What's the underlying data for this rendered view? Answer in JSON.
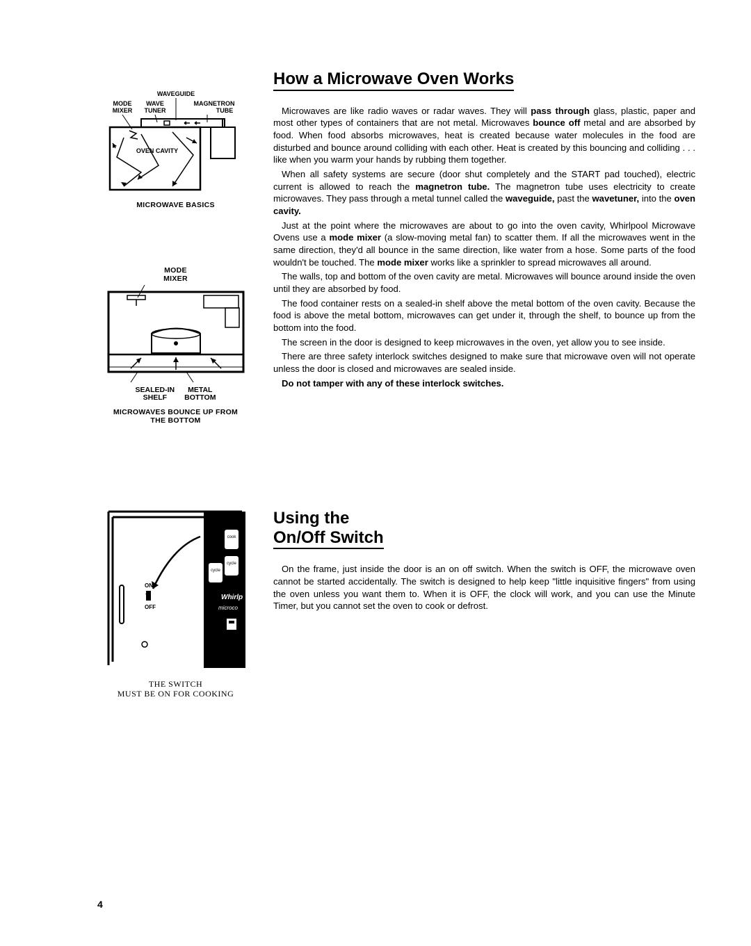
{
  "page_number": "4",
  "section1": {
    "title": "How a Microwave Oven Works",
    "paragraphs": [
      {
        "pre": "Microwaves are like radio waves or radar waves. They will ",
        "b1": "pass through",
        "mid1": " glass, plastic, paper and most other types of containers that are not metal. Microwaves ",
        "b2": "bounce off",
        "post": " metal and are absorbed by food. When food absorbs microwaves, heat is created because water molecules in the food are disturbed and bounce around colliding with each other. Heat is created by this bouncing and colliding . . . like when you warm your hands by rubbing them together."
      },
      {
        "pre": "When all safety systems are secure (door shut completely and the START pad touched), electric current is allowed to reach the ",
        "b1": "magnetron tube.",
        "mid1": " The magnetron tube uses electricity to create microwaves. They pass through a metal tunnel called the ",
        "b2": "waveguide,",
        "mid2": " past the ",
        "b3": "wavetuner,",
        "mid3": " into the ",
        "b4": "oven cavity.",
        "post": ""
      },
      {
        "pre": "Just at the point where the microwaves are about to go into the oven cavity, Whirlpool Microwave Ovens use a ",
        "b1": "mode mixer",
        "mid1": " (a slow-moving metal fan) to scatter them. If all the microwaves went in the same direction, they'd all bounce in the same direction, like water from a hose. Some parts of the food wouldn't be touched. The ",
        "b2": "mode mixer",
        "post": " works like a sprinkler to spread microwaves all around."
      },
      {
        "plain": "The walls, top and bottom of the oven cavity are metal. Microwaves will bounce around inside the oven until they are absorbed by food."
      },
      {
        "plain": "The food container rests on a sealed-in shelf above the metal bottom of the oven cavity. Because the food is above the metal bottom, microwaves can get under it, through the shelf, to bounce up from the bottom into the food."
      },
      {
        "plain": "The screen in the door is designed to keep microwaves in the oven, yet allow you to see inside."
      },
      {
        "plain": "There are three safety interlock switches designed to make sure that microwave oven will not operate unless the door is closed and microwaves are sealed inside."
      },
      {
        "bold_only": "Do not tamper with any of these interlock switches."
      }
    ]
  },
  "section2": {
    "title_line1": "Using the",
    "title_line2": "On/Off Switch",
    "paragraph": "On the frame, just inside the door is an on off switch. When the switch is OFF, the microwave oven cannot be started accidentally. The switch is designed to help keep \"little inquisitive fingers\" from using the oven unless you want them to. When it is OFF, the clock will work, and you can use the Minute Timer, but you cannot set the oven to cook or defrost."
  },
  "diagrams": {
    "d1": {
      "labels": {
        "waveguide": "WAVEGUIDE",
        "mode_mixer_l1": "MODE",
        "mode_mixer_l2": "MIXER",
        "wave_tuner_l1": "WAVE",
        "wave_tuner_l2": "TUNER",
        "magnetron_l1": "MAGNETRON",
        "magnetron_l2": "TUBE",
        "oven_cavity": "OVEN CAVITY"
      },
      "caption": "MICROWAVE BASICS"
    },
    "d2": {
      "labels": {
        "mode_mixer_l1": "MODE",
        "mode_mixer_l2": "MIXER",
        "sealed_in_l1": "SEALED-IN",
        "sealed_in_l2": "SHELF",
        "metal_bottom_l1": "METAL",
        "metal_bottom_l2": "BOTTOM"
      },
      "caption_l1": "MICROWAVES BOUNCE UP FROM",
      "caption_l2": "THE BOTTOM"
    },
    "d3": {
      "labels": {
        "on": "ON",
        "off": "OFF",
        "brand1": "Whirlp",
        "brand2": "microco",
        "cook": "cook",
        "cycle1": "cycle",
        "cycle2": "cycle"
      },
      "caption_l1": "THE SWITCH",
      "caption_l2": "MUST BE ON FOR COOKING"
    }
  },
  "style": {
    "page_bg": "#ffffff",
    "text_color": "#000000",
    "rule_color": "#000000",
    "title_fontsize_pt": 18,
    "body_fontsize_pt": 10,
    "caption_fontsize_pt": 8,
    "diagram_stroke": "#000000",
    "diagram_fill_dark": "#000000"
  }
}
